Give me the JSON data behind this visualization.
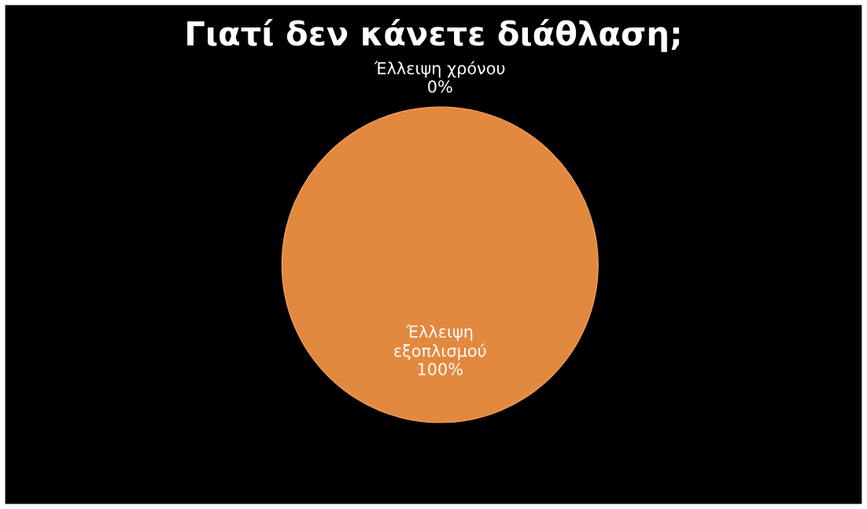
{
  "chart_data": {
    "type": "pie",
    "title": "Γιατί δεν κάνετε διάθλαση;",
    "categories": [
      "Έλλειψη χρόνου",
      "Έλλειψη εξοπλισμού"
    ],
    "values": [
      0,
      100
    ],
    "value_labels": [
      "0%",
      "100%"
    ],
    "colors": [
      "#e3883f",
      "#e3883f"
    ]
  }
}
